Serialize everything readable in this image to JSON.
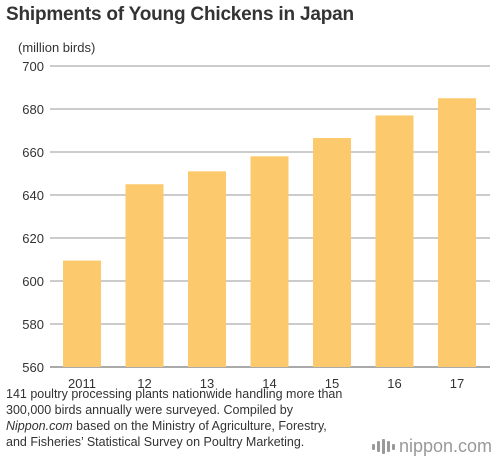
{
  "chart_data": {
    "type": "bar",
    "title": "Shipments of Young Chickens in Japan",
    "ylabel": "(million birds)",
    "xlabel": "",
    "categories": [
      "2011",
      "12",
      "13",
      "14",
      "15",
      "16",
      "17"
    ],
    "values": [
      609.5,
      645,
      651,
      658,
      666.5,
      677,
      685
    ],
    "ylim": [
      560,
      700
    ],
    "yticks": [
      560,
      580,
      600,
      620,
      640,
      660,
      680,
      700
    ],
    "grid": true,
    "bar_color": "#fcc96c"
  },
  "note": {
    "line1": "141 poultry processing plants nationwide handling more than",
    "line2": "300,000 birds annually were surveyed. Compiled by",
    "source": "Nippon.com",
    "line3_rest": " based on the Ministry of Agriculture, Forestry,",
    "line4": "and Fisheries’ Statistical Survey on Poultry Marketing."
  },
  "brand": {
    "text": "nippon.com",
    "icon": "nippon-logo-icon"
  }
}
